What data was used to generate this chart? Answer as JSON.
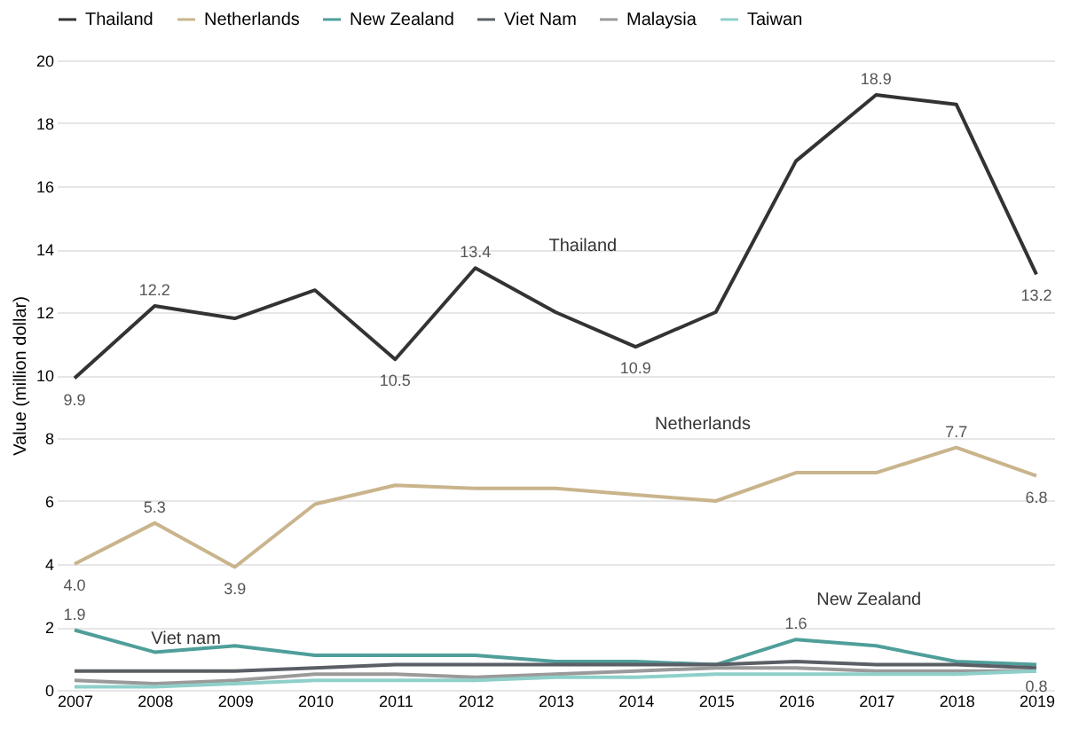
{
  "chart_data": {
    "type": "line",
    "ylabel": "Value (million dollar)",
    "categories": [
      "2007",
      "2008",
      "2009",
      "2010",
      "2011",
      "2012",
      "2013",
      "2014",
      "2015",
      "2016",
      "2017",
      "2018",
      "2019"
    ],
    "series": [
      {
        "name": "Thailand",
        "color": "#333333",
        "values": [
          9.9,
          12.2,
          11.8,
          12.7,
          10.5,
          13.4,
          12.0,
          10.9,
          12.0,
          16.8,
          18.9,
          18.6,
          13.2
        ],
        "value_labels": [
          "9.9",
          "12.2",
          null,
          null,
          "10.5",
          "13.4",
          null,
          "10.9",
          null,
          null,
          "18.9",
          null,
          "13.2"
        ]
      },
      {
        "name": "Netherlands",
        "color": "#c9b48c",
        "values": [
          4.0,
          5.3,
          3.9,
          5.9,
          6.5,
          6.4,
          6.4,
          6.2,
          6.0,
          6.9,
          6.9,
          7.7,
          6.8
        ],
        "value_labels": [
          "4.0",
          "5.3",
          "3.9",
          null,
          null,
          null,
          null,
          null,
          null,
          null,
          null,
          "7.7",
          "6.8"
        ]
      },
      {
        "name": "New Zealand",
        "color": "#4f9e9a",
        "values": [
          1.9,
          1.2,
          1.4,
          1.1,
          1.1,
          1.1,
          0.9,
          0.9,
          0.8,
          1.6,
          1.4,
          0.9,
          0.8
        ],
        "value_labels": [
          "1.9",
          null,
          null,
          null,
          null,
          null,
          null,
          null,
          null,
          "1.6",
          null,
          null,
          "0.8"
        ]
      },
      {
        "name": "Viet Nam",
        "color": "#5a5f66",
        "values": [
          0.6,
          0.6,
          0.6,
          0.7,
          0.8,
          0.8,
          0.8,
          0.8,
          0.8,
          0.9,
          0.8,
          0.8,
          0.7
        ]
      },
      {
        "name": "Malaysia",
        "color": "#9a9a9a",
        "values": [
          0.3,
          0.2,
          0.3,
          0.5,
          0.5,
          0.4,
          0.5,
          0.6,
          0.7,
          0.7,
          0.6,
          0.6,
          0.6
        ]
      },
      {
        "name": "Taiwan",
        "color": "#8fcfca",
        "values": [
          0.1,
          0.1,
          0.2,
          0.3,
          0.3,
          0.3,
          0.4,
          0.4,
          0.5,
          0.5,
          0.5,
          0.5,
          0.6
        ]
      }
    ],
    "annotations": [
      "Thailand",
      "Netherlands",
      "New Zealand",
      "Viet nam"
    ],
    "ylim": [
      0,
      20
    ],
    "yticks": [
      0,
      2,
      4,
      6,
      8,
      10,
      12,
      14,
      16,
      18,
      20
    ],
    "grid": "y",
    "legend": "top",
    "line_style": "solid",
    "marker": "none"
  }
}
